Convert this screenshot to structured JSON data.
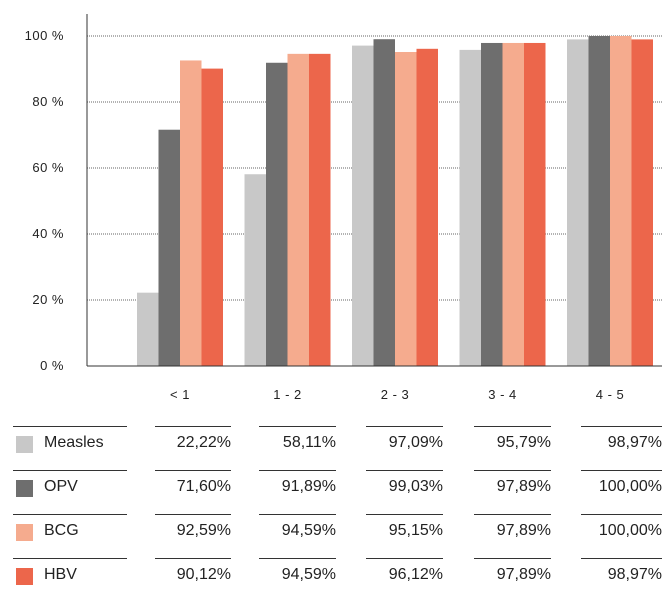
{
  "chart_data": {
    "type": "bar",
    "categories": [
      "< 1",
      "1 - 2",
      "2 - 3",
      "3 - 4",
      "4 - 5"
    ],
    "ylim": [
      0,
      100
    ],
    "yticks": [
      "0 %",
      "20 %",
      "40 %",
      "60 %",
      "80 %",
      "100 %"
    ],
    "grid": true,
    "series": [
      {
        "name": "Measles",
        "color": "#c8c8c8",
        "values": [
          22.22,
          58.11,
          97.09,
          95.79,
          98.97
        ]
      },
      {
        "name": "OPV",
        "color": "#6e6e6e",
        "values": [
          71.6,
          91.89,
          99.03,
          97.89,
          100.0
        ]
      },
      {
        "name": "BCG",
        "color": "#f5ab8e",
        "values": [
          92.59,
          94.59,
          95.15,
          97.89,
          100.0
        ]
      },
      {
        "name": "HBV",
        "color": "#ec664b",
        "values": [
          90.12,
          94.59,
          96.12,
          97.89,
          98.97
        ]
      }
    ]
  },
  "table": {
    "rows": [
      {
        "name": "Measles",
        "cells": [
          "22,22%",
          "58,11%",
          "97,09%",
          "95,79%",
          "98,97%"
        ]
      },
      {
        "name": "OPV",
        "cells": [
          "71,60%",
          "91,89%",
          "99,03%",
          "97,89%",
          "100,00%"
        ]
      },
      {
        "name": "BCG",
        "cells": [
          "92,59%",
          "94,59%",
          "95,15%",
          "97,89%",
          "100,00%"
        ]
      },
      {
        "name": "HBV",
        "cells": [
          "90,12%",
          "94,59%",
          "96,12%",
          "97,89%",
          "98,97%"
        ]
      }
    ]
  }
}
